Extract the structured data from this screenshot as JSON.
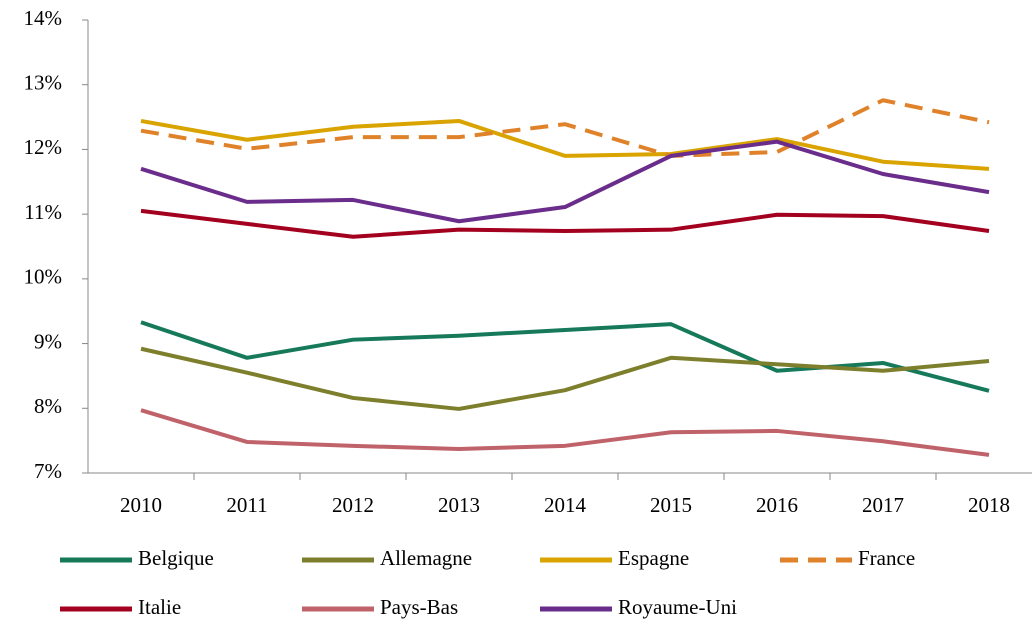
{
  "chart_data": {
    "type": "line",
    "categories": [
      "2010",
      "2011",
      "2012",
      "2013",
      "2014",
      "2015",
      "2016",
      "2017",
      "2018"
    ],
    "series": [
      {
        "name": "Belgique",
        "color": "#16795a",
        "values": [
          9.33,
          8.78,
          9.06,
          9.12,
          9.21,
          9.3,
          8.58,
          8.7,
          8.27
        ]
      },
      {
        "name": "Allemagne",
        "color": "#7d7f2c",
        "values": [
          8.92,
          8.55,
          8.16,
          7.99,
          8.28,
          8.78,
          8.68,
          8.58,
          8.73
        ]
      },
      {
        "name": "Espagne",
        "color": "#d9a300",
        "values": [
          12.44,
          12.15,
          12.35,
          12.44,
          11.9,
          11.93,
          12.16,
          11.81,
          11.7
        ]
      },
      {
        "name": "France",
        "color": "#e0822a",
        "dashed": true,
        "values": [
          12.29,
          12.01,
          12.19,
          12.19,
          12.39,
          11.9,
          11.96,
          12.76,
          12.42
        ]
      },
      {
        "name": "Italie",
        "color": "#a3001f",
        "values": [
          11.05,
          10.85,
          10.65,
          10.76,
          10.74,
          10.76,
          10.99,
          10.97,
          10.74
        ]
      },
      {
        "name": "Pays-Bas",
        "color": "#c0626a",
        "values": [
          7.97,
          7.48,
          7.42,
          7.37,
          7.42,
          7.63,
          7.65,
          7.49,
          7.28
        ]
      },
      {
        "name": "Royaume-Uni",
        "color": "#6a2d8b",
        "values": [
          11.7,
          11.19,
          11.22,
          10.89,
          11.11,
          11.9,
          12.12,
          11.62,
          11.34
        ]
      }
    ],
    "ylim": [
      7,
      14
    ],
    "yticks": [
      {
        "value": 7,
        "label": "7%"
      },
      {
        "value": 8,
        "label": "8%"
      },
      {
        "value": 9,
        "label": "9%"
      },
      {
        "value": 10,
        "label": "10%"
      },
      {
        "value": 11,
        "label": "11%"
      },
      {
        "value": 12,
        "label": "12%"
      },
      {
        "value": 13,
        "label": "13%"
      },
      {
        "value": 14,
        "label": "14%"
      }
    ],
    "grid": false,
    "legend": "bottom"
  }
}
